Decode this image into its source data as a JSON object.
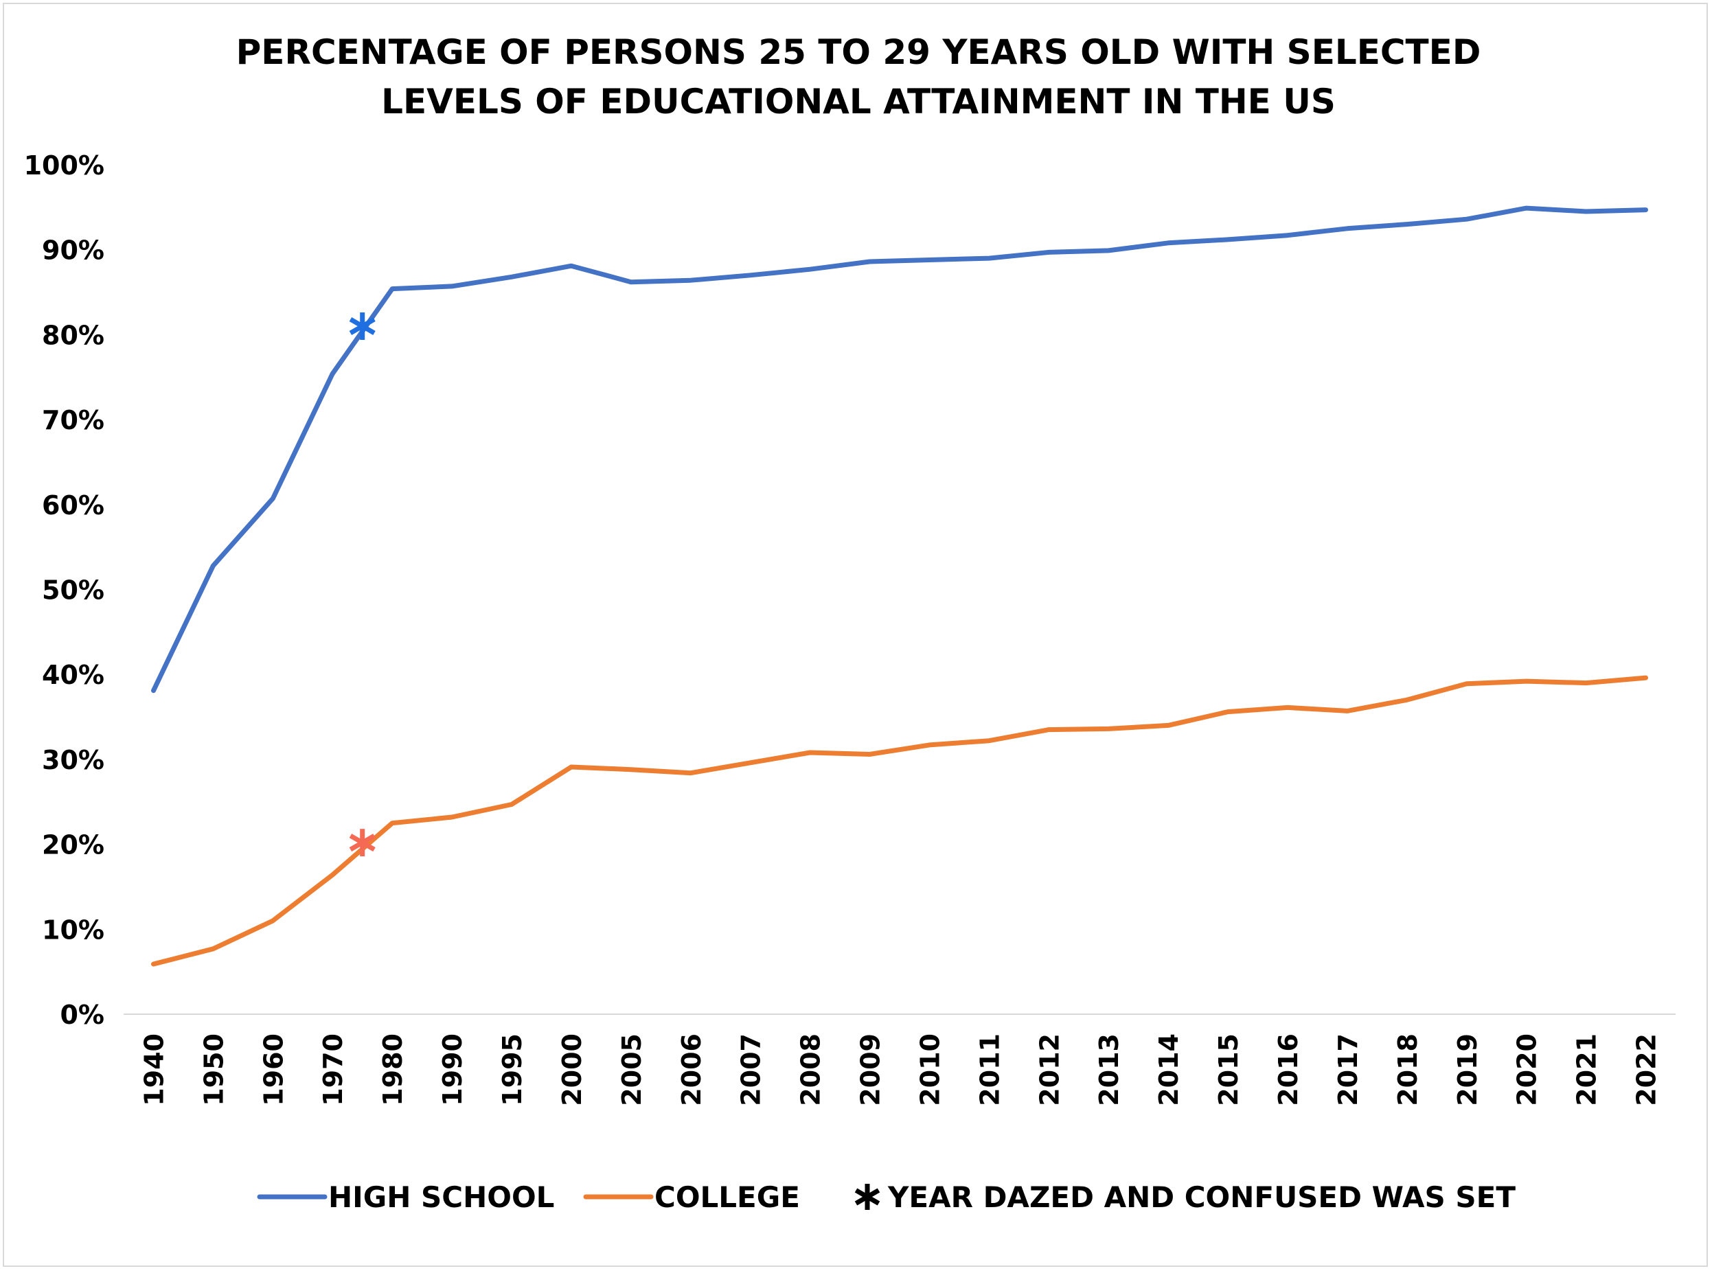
{
  "chart_data": {
    "type": "line",
    "title_lines": [
      "PERCENTAGE OF PERSONS 25 TO 29 YEARS OLD WITH SELECTED",
      "LEVELS OF EDUCATIONAL ATTAINMENT IN THE US"
    ],
    "categories": [
      "1940",
      "1950",
      "1960",
      "1970",
      "1980",
      "1990",
      "1995",
      "2000",
      "2005",
      "2006",
      "2007",
      "2008",
      "2009",
      "2010",
      "2011",
      "2012",
      "2013",
      "2014",
      "2015",
      "2016",
      "2017",
      "2018",
      "2019",
      "2020",
      "2021",
      "2022"
    ],
    "ylim": [
      0,
      100
    ],
    "y_ticks": [
      "0%",
      "10%",
      "20%",
      "30%",
      "40%",
      "50%",
      "60%",
      "70%",
      "80%",
      "90%",
      "100%"
    ],
    "grid": false,
    "legend_position": "bottom",
    "series": [
      {
        "name": "HIGH SCHOOL",
        "color": "#4472c4",
        "values": [
          38.1,
          52.8,
          60.7,
          75.4,
          85.4,
          85.7,
          86.8,
          88.1,
          86.2,
          86.4,
          87.0,
          87.7,
          88.6,
          88.8,
          89.0,
          89.7,
          89.9,
          90.8,
          91.2,
          91.7,
          92.5,
          93.0,
          93.6,
          94.9,
          94.5,
          94.7
        ]
      },
      {
        "name": "COLLEGE",
        "color": "#ed7d31",
        "values": [
          5.9,
          7.7,
          11.0,
          16.4,
          22.5,
          23.2,
          24.7,
          29.1,
          28.8,
          28.4,
          29.6,
          30.8,
          30.6,
          31.7,
          32.2,
          33.5,
          33.6,
          34.0,
          35.6,
          36.1,
          35.7,
          37.0,
          38.9,
          39.2,
          39.0,
          39.6
        ]
      }
    ],
    "markers": [
      {
        "name": "YEAR DAZED AND CONFUSED WAS SET",
        "position_between": [
          "1970",
          "1980"
        ],
        "fraction": 0.5,
        "y": 81.0,
        "color": "#1f6fe0",
        "symbol": "asterisk"
      },
      {
        "name": "YEAR DAZED AND CONFUSED WAS SET",
        "position_between": [
          "1970",
          "1980"
        ],
        "fraction": 0.5,
        "y": 20.2,
        "color": "#f46a55",
        "symbol": "asterisk"
      }
    ],
    "legend": [
      {
        "label": "HIGH SCHOOL",
        "kind": "line",
        "color": "#4472c4"
      },
      {
        "label": "COLLEGE",
        "kind": "line",
        "color": "#ed7d31"
      },
      {
        "label": "YEAR DAZED AND CONFUSED WAS SET",
        "kind": "asterisk",
        "color": "#000000"
      }
    ]
  }
}
